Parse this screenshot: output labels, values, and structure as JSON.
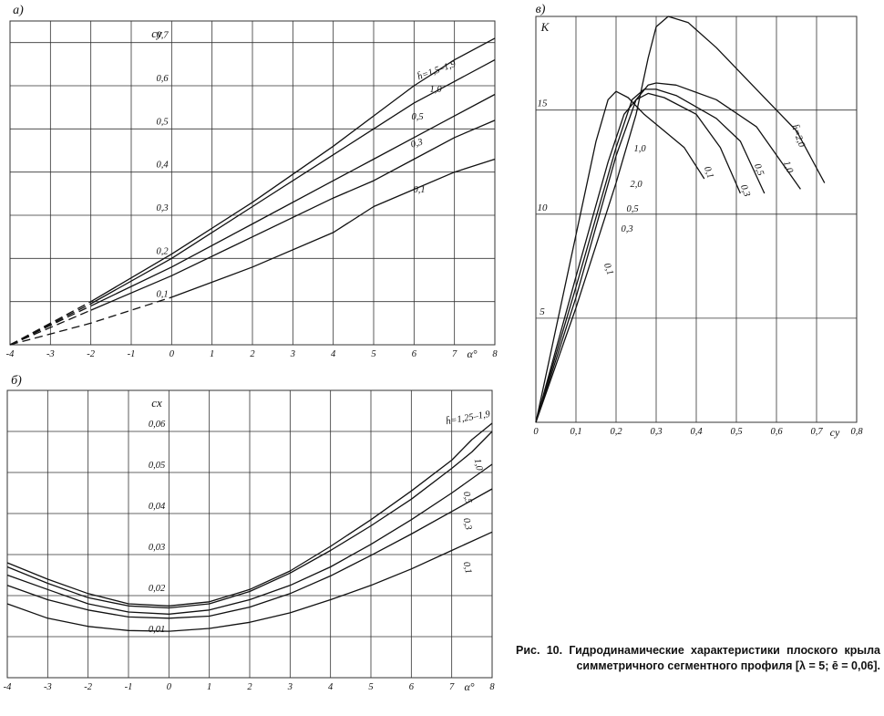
{
  "caption": "Рис. 10. Гидродинамические характеристики плоского крыла симметричного сегментного профиля [λ = 5; ē = 0,06].",
  "colors": {
    "curve": "#111111",
    "grid": "#333333",
    "background": "#ffffff"
  },
  "chart_data": [
    {
      "panel": "а)",
      "type": "line",
      "ylabel": "c_y",
      "xlabel": "α°",
      "xlim": [
        -4,
        8
      ],
      "ylim": [
        0,
        0.75
      ],
      "xticks": [
        -4,
        -3,
        -2,
        -1,
        0,
        1,
        2,
        3,
        4,
        5,
        6,
        7,
        8
      ],
      "xtick_labels": [
        "-4",
        "-3",
        "-2",
        "-1",
        "0",
        "1",
        "2",
        "3",
        "4",
        "5",
        "6",
        "7",
        "8"
      ],
      "yticks": [
        0.1,
        0.2,
        0.3,
        0.4,
        0.5,
        0.6,
        0.7
      ],
      "ytick_labels": [
        "0,1",
        "0,2",
        "0,3",
        "0,4",
        "0,5",
        "0,6",
        "0,7"
      ],
      "grid": true,
      "series": [
        {
          "name": "h̄=1,5–1,9",
          "dashed_until_x": -2.5,
          "points": [
            [
              -4,
              0
            ],
            [
              -2,
              0.1
            ],
            [
              0,
              0.21
            ],
            [
              2,
              0.33
            ],
            [
              4,
              0.46
            ],
            [
              5,
              0.53
            ],
            [
              6,
              0.6
            ],
            [
              7,
              0.66
            ],
            [
              8,
              0.71
            ]
          ]
        },
        {
          "name": "1,0",
          "dashed_until_x": -2.5,
          "points": [
            [
              -4,
              0
            ],
            [
              -2,
              0.095
            ],
            [
              0,
              0.2
            ],
            [
              2,
              0.32
            ],
            [
              4,
              0.44
            ],
            [
              5,
              0.5
            ],
            [
              6,
              0.56
            ],
            [
              7,
              0.61
            ],
            [
              8,
              0.66
            ]
          ]
        },
        {
          "name": "0,5",
          "dashed_until_x": -2.5,
          "points": [
            [
              -4,
              0
            ],
            [
              -2,
              0.09
            ],
            [
              0,
              0.18
            ],
            [
              2,
              0.28
            ],
            [
              4,
              0.38
            ],
            [
              5,
              0.43
            ],
            [
              6,
              0.48
            ],
            [
              7,
              0.53
            ],
            [
              8,
              0.58
            ]
          ]
        },
        {
          "name": "0,3",
          "dashed_until_x": -2.5,
          "points": [
            [
              -4,
              0
            ],
            [
              -2,
              0.08
            ],
            [
              0,
              0.16
            ],
            [
              2,
              0.25
            ],
            [
              4,
              0.34
            ],
            [
              5,
              0.38
            ],
            [
              6,
              0.43
            ],
            [
              7,
              0.48
            ],
            [
              8,
              0.52
            ]
          ]
        },
        {
          "name": "0,1",
          "dashed_until_x": -1.5,
          "points": [
            [
              -4,
              0
            ],
            [
              -2,
              0.05
            ],
            [
              0,
              0.11
            ],
            [
              2,
              0.18
            ],
            [
              4,
              0.26
            ],
            [
              5,
              0.32
            ],
            [
              6,
              0.36
            ],
            [
              7,
              0.4
            ],
            [
              8,
              0.43
            ]
          ]
        }
      ]
    },
    {
      "panel": "б)",
      "type": "line",
      "ylabel": "c_x",
      "xlabel": "α°",
      "xlim": [
        -4,
        8
      ],
      "ylim": [
        0,
        0.07
      ],
      "xticks": [
        -4,
        -3,
        -2,
        -1,
        0,
        1,
        2,
        3,
        4,
        5,
        6,
        7,
        8
      ],
      "xtick_labels": [
        "-4",
        "-3",
        "-2",
        "-1",
        "0",
        "1",
        "2",
        "3",
        "4",
        "5",
        "6",
        "7",
        "8"
      ],
      "yticks": [
        0.01,
        0.02,
        0.03,
        0.04,
        0.05,
        0.06
      ],
      "ytick_labels": [
        "0,01",
        "0,02",
        "0,03",
        "0,04",
        "0,05",
        "0,06"
      ],
      "grid": true,
      "series": [
        {
          "name": "h̄=1,25–1,9",
          "points": [
            [
              -4,
              0.028
            ],
            [
              -3,
              0.024
            ],
            [
              -2,
              0.0205
            ],
            [
              -1,
              0.018
            ],
            [
              0,
              0.0175
            ],
            [
              1,
              0.0185
            ],
            [
              2,
              0.0215
            ],
            [
              3,
              0.026
            ],
            [
              4,
              0.032
            ],
            [
              5,
              0.0385
            ],
            [
              6,
              0.0455
            ],
            [
              7,
              0.053
            ],
            [
              7.5,
              0.058
            ],
            [
              8,
              0.062
            ]
          ]
        },
        {
          "name": "1,0",
          "points": [
            [
              -4,
              0.027
            ],
            [
              -3,
              0.023
            ],
            [
              -2,
              0.0195
            ],
            [
              -1,
              0.0175
            ],
            [
              0,
              0.017
            ],
            [
              1,
              0.018
            ],
            [
              2,
              0.021
            ],
            [
              3,
              0.0255
            ],
            [
              4,
              0.031
            ],
            [
              5,
              0.037
            ],
            [
              6,
              0.0435
            ],
            [
              7,
              0.051
            ],
            [
              7.5,
              0.055
            ],
            [
              8,
              0.06
            ]
          ]
        },
        {
          "name": "0,5",
          "points": [
            [
              -4,
              0.025
            ],
            [
              -3,
              0.0215
            ],
            [
              -2,
              0.018
            ],
            [
              -1,
              0.016
            ],
            [
              0,
              0.0155
            ],
            [
              1,
              0.0165
            ],
            [
              2,
              0.019
            ],
            [
              3,
              0.0225
            ],
            [
              4,
              0.027
            ],
            [
              5,
              0.0325
            ],
            [
              6,
              0.0385
            ],
            [
              7,
              0.045
            ],
            [
              8,
              0.052
            ]
          ]
        },
        {
          "name": "0,3",
          "points": [
            [
              -4,
              0.0225
            ],
            [
              -3,
              0.019
            ],
            [
              -2,
              0.0165
            ],
            [
              -1,
              0.0148
            ],
            [
              0,
              0.0145
            ],
            [
              1,
              0.015
            ],
            [
              2,
              0.0172
            ],
            [
              3,
              0.0205
            ],
            [
              4,
              0.0248
            ],
            [
              5,
              0.0298
            ],
            [
              6,
              0.035
            ],
            [
              7,
              0.0405
            ],
            [
              8,
              0.046
            ]
          ]
        },
        {
          "name": "0,1",
          "points": [
            [
              -4,
              0.018
            ],
            [
              -3,
              0.0145
            ],
            [
              -2,
              0.0125
            ],
            [
              -1,
              0.0115
            ],
            [
              0,
              0.0113
            ],
            [
              1,
              0.012
            ],
            [
              2,
              0.0135
            ],
            [
              3,
              0.0158
            ],
            [
              4,
              0.019
            ],
            [
              5,
              0.0225
            ],
            [
              6,
              0.0265
            ],
            [
              7,
              0.031
            ],
            [
              8,
              0.0355
            ]
          ]
        }
      ]
    },
    {
      "panel": "в)",
      "type": "line",
      "ylabel": "K",
      "xlabel": "c_y",
      "xlim": [
        0,
        0.8
      ],
      "ylim": [
        0,
        19.5
      ],
      "xticks": [
        0,
        0.1,
        0.2,
        0.3,
        0.4,
        0.5,
        0.6,
        0.7,
        0.8
      ],
      "xtick_labels": [
        "0",
        "0,1",
        "0,2",
        "0,3",
        "0,4",
        "0,5",
        "0,6",
        "0,7",
        "0,8"
      ],
      "yticks": [
        5,
        10,
        15
      ],
      "ytick_labels": [
        "5",
        "10",
        "15"
      ],
      "grid": true,
      "series": [
        {
          "name": "h̄=2,0",
          "points": [
            [
              0,
              0
            ],
            [
              0.1,
              5.5
            ],
            [
              0.2,
              11.5
            ],
            [
              0.25,
              14.8
            ],
            [
              0.28,
              17.5
            ],
            [
              0.3,
              19.0
            ],
            [
              0.33,
              19.5
            ],
            [
              0.38,
              19.2
            ],
            [
              0.45,
              18.0
            ],
            [
              0.55,
              16.0
            ],
            [
              0.65,
              14.0
            ],
            [
              0.72,
              11.5
            ]
          ]
        },
        {
          "name": "1,0",
          "points": [
            [
              0,
              0
            ],
            [
              0.1,
              6.0
            ],
            [
              0.2,
              12.8
            ],
            [
              0.25,
              15.5
            ],
            [
              0.28,
              16.2
            ],
            [
              0.3,
              16.3
            ],
            [
              0.35,
              16.2
            ],
            [
              0.45,
              15.5
            ],
            [
              0.55,
              14.2
            ],
            [
              0.66,
              11.2
            ]
          ]
        },
        {
          "name": "0,5",
          "points": [
            [
              0,
              0
            ],
            [
              0.1,
              6.5
            ],
            [
              0.2,
              13.2
            ],
            [
              0.24,
              15.5
            ],
            [
              0.27,
              16.0
            ],
            [
              0.3,
              16.0
            ],
            [
              0.35,
              15.7
            ],
            [
              0.45,
              14.6
            ],
            [
              0.51,
              13.5
            ],
            [
              0.57,
              11.0
            ]
          ]
        },
        {
          "name": "0,3",
          "points": [
            [
              0,
              0
            ],
            [
              0.1,
              7.0
            ],
            [
              0.18,
              12.5
            ],
            [
              0.22,
              14.8
            ],
            [
              0.25,
              15.5
            ],
            [
              0.28,
              15.8
            ],
            [
              0.32,
              15.6
            ],
            [
              0.4,
              14.8
            ],
            [
              0.46,
              13.2
            ],
            [
              0.51,
              11.0
            ]
          ]
        },
        {
          "name": "0,1",
          "points": [
            [
              0,
              0
            ],
            [
              0.05,
              4.5
            ],
            [
              0.1,
              9.0
            ],
            [
              0.15,
              13.5
            ],
            [
              0.18,
              15.5
            ],
            [
              0.2,
              15.9
            ],
            [
              0.23,
              15.6
            ],
            [
              0.27,
              14.8
            ],
            [
              0.32,
              14.0
            ],
            [
              0.37,
              13.2
            ],
            [
              0.42,
              11.7
            ]
          ]
        },
        {
          "name": "2,0",
          "points": []
        }
      ],
      "curve_labels": [
        "h̄=2,0",
        "1,0",
        "0,5",
        "0,3",
        "0,1",
        "0,1",
        "2,0",
        "0,5",
        "0,3",
        "1,0"
      ]
    }
  ]
}
